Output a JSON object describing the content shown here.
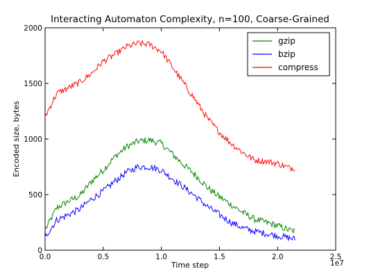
{
  "chart_data": {
    "type": "line",
    "title": "Interacting Automaton Complexity, n=100, Coarse-Grained",
    "xlabel": "Time step",
    "ylabel": "Encoded size, bytes",
    "x_scale_label": "1e7",
    "xlim": [
      0,
      2.5
    ],
    "ylim": [
      0,
      2000
    ],
    "xticks": [
      "0.0",
      "0.5",
      "1.0",
      "1.5",
      "2.0",
      "2.5"
    ],
    "yticks": [
      "0",
      "500",
      "1000",
      "1500",
      "2000"
    ],
    "legend_position": "top-right",
    "grid": false,
    "x": [
      0,
      0.1,
      0.2,
      0.3,
      0.4,
      0.5,
      0.6,
      0.7,
      0.8,
      0.9,
      1.0,
      1.1,
      1.2,
      1.3,
      1.4,
      1.5,
      1.6,
      1.7,
      1.8,
      1.9,
      2.0,
      2.1,
      2.15
    ],
    "series": [
      {
        "name": "gzip",
        "color": "#008000",
        "values": [
          180,
          380,
          440,
          490,
          620,
          720,
          840,
          930,
          980,
          990,
          960,
          860,
          760,
          670,
          560,
          480,
          410,
          340,
          280,
          250,
          220,
          180,
          170
        ]
      },
      {
        "name": "bzip",
        "color": "#0000ff",
        "values": [
          120,
          270,
          320,
          370,
          460,
          530,
          620,
          700,
          750,
          750,
          720,
          640,
          560,
          480,
          390,
          320,
          250,
          200,
          170,
          150,
          130,
          110,
          100
        ]
      },
      {
        "name": "compress",
        "color": "#ff0000",
        "values": [
          1200,
          1410,
          1460,
          1510,
          1590,
          1700,
          1760,
          1830,
          1860,
          1850,
          1790,
          1640,
          1490,
          1340,
          1180,
          1060,
          960,
          880,
          810,
          800,
          780,
          740,
          740
        ]
      }
    ]
  }
}
